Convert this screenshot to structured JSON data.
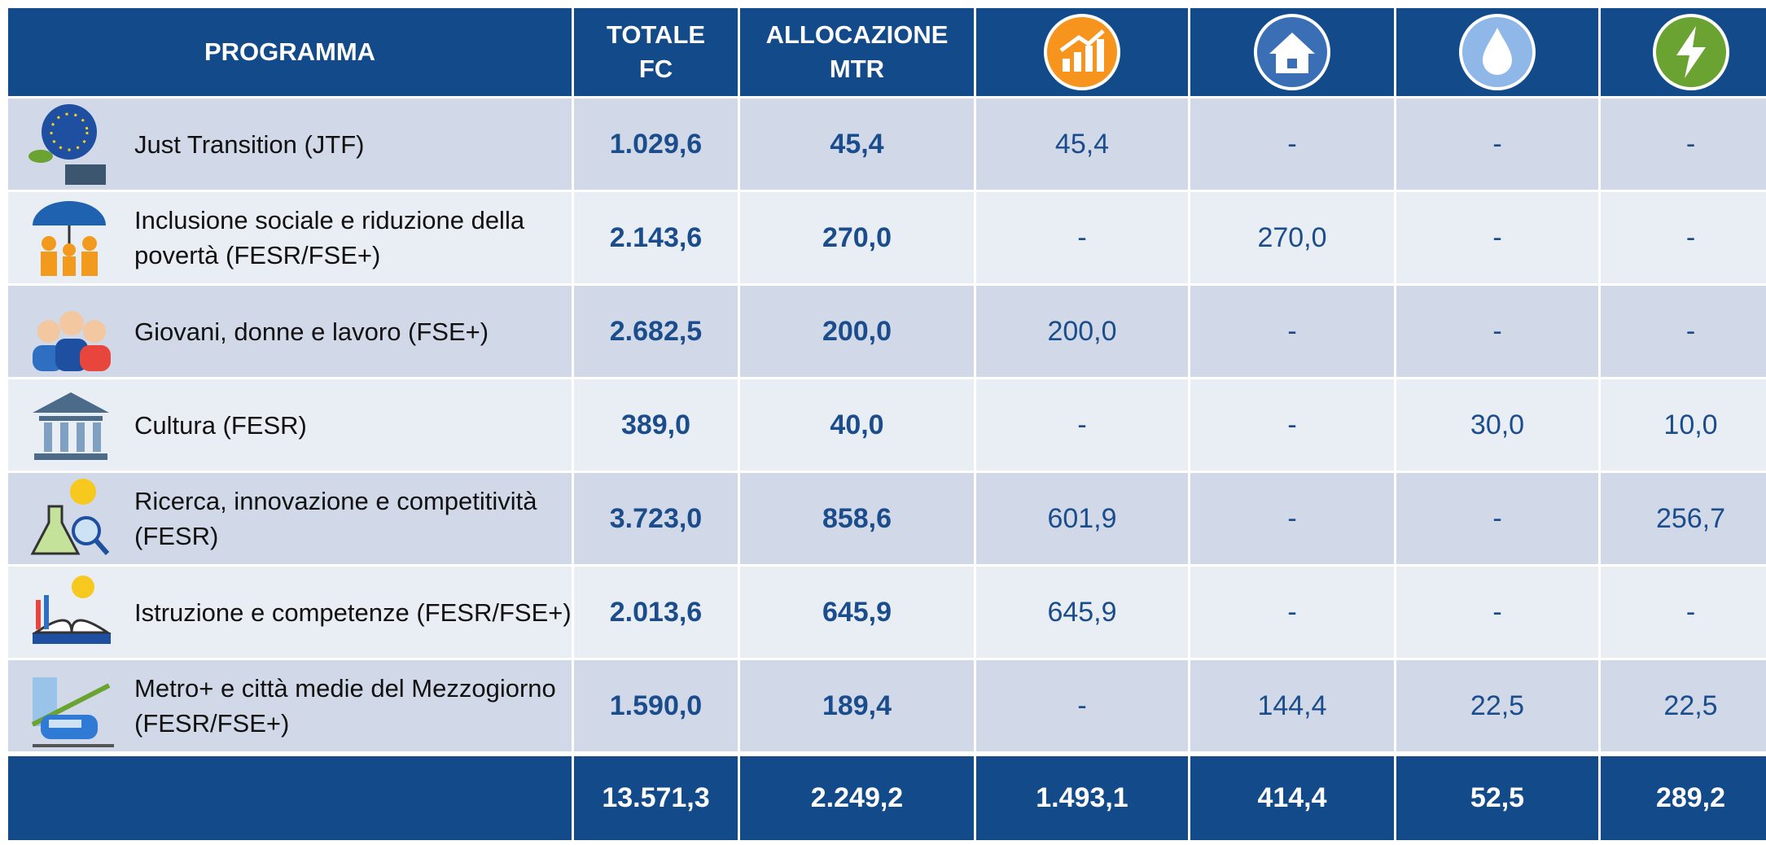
{
  "header": {
    "programma": "PROGRAMMA",
    "totale": "TOTALE FC",
    "allocazione": "ALLOCAZIONE MTR"
  },
  "table": {
    "rows": [
      [
        "Just Transition (JTF)",
        "1.029,6",
        "45,4",
        "45,4",
        "-",
        "-",
        "-"
      ],
      [
        "Inclusione sociale e riduzione della povertà (FESR/FSE+)",
        "2.143,6",
        "270,0",
        "-",
        "270,0",
        "-",
        "-"
      ],
      [
        "Giovani, donne e lavoro (FSE+)",
        "2.682,5",
        "200,0",
        "200,0",
        "-",
        "-",
        "-"
      ],
      [
        "Cultura (FESR)",
        "389,0",
        "40,0",
        "-",
        "-",
        "30,0",
        "10,0"
      ],
      [
        "Ricerca, innovazione e competitività  (FESR)",
        "3.723,0",
        "858,6",
        "601,9",
        "-",
        "-",
        "256,7"
      ],
      [
        "Istruzione e competenze (FESR/FSE+)",
        "2.013,6",
        "645,9",
        "645,9",
        "-",
        "-",
        "-"
      ],
      [
        "Metro+ e città medie del Mezzogiorno (FESR/FSE+)",
        "1.590,0",
        "189,4",
        "-",
        "144,4",
        "22,5",
        "22,5"
      ]
    ],
    "totals": [
      "13.571,3",
      "2.249,2",
      "1.493,1",
      "414,4",
      "52,5",
      "289,2"
    ]
  }
}
